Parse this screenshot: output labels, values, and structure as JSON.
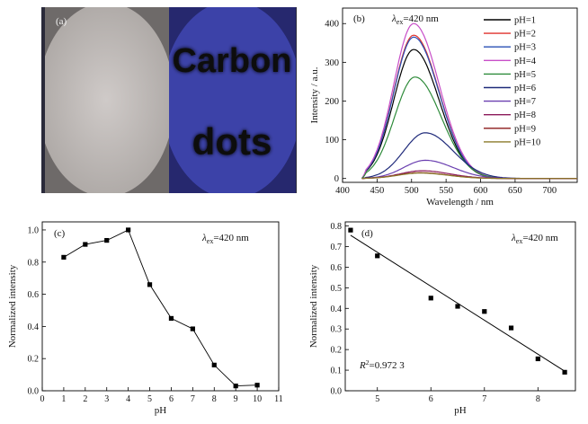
{
  "panels": {
    "a": {
      "label": "(a)",
      "photo_text_line1": "Carbon",
      "photo_text_line2": "dots",
      "colors": {
        "left_bg": "#b9b4b1",
        "right_bg": "#3c42a8",
        "glow": "#3fd8d0"
      }
    }
  },
  "chart_data": [
    {
      "panel": "b",
      "type": "line",
      "panel_label": "(b)",
      "annotation_main": "λ",
      "annotation_sub": "ex",
      "annotation_tail": "=420 nm",
      "xlabel": "Wavelength / nm",
      "ylabel": "Intensity / a.u.",
      "xlim": [
        400,
        740
      ],
      "ylim": [
        -10,
        440
      ],
      "xticks": [
        400,
        450,
        500,
        550,
        600,
        650,
        700
      ],
      "yticks": [
        0,
        100,
        200,
        300,
        400
      ],
      "legend_position": "top-right",
      "series": [
        {
          "name": "pH=1",
          "color": "#000000",
          "peak": 333,
          "center": 503,
          "width": 37
        },
        {
          "name": "pH=2",
          "color": "#e0312b",
          "peak": 370,
          "center": 503,
          "width": 37
        },
        {
          "name": "pH=3",
          "color": "#2a4fb5",
          "peak": 365,
          "center": 503,
          "width": 37
        },
        {
          "name": "pH=4",
          "color": "#c84fc8",
          "peak": 400,
          "center": 503,
          "width": 37
        },
        {
          "name": "pH=5",
          "color": "#2e8b3a",
          "peak": 262,
          "center": 505,
          "width": 38
        },
        {
          "name": "pH=6",
          "color": "#1f2a7a",
          "peak": 118,
          "center": 520,
          "width": 40
        },
        {
          "name": "pH=7",
          "color": "#6a3fb0",
          "peak": 47,
          "center": 520,
          "width": 40
        },
        {
          "name": "pH=8",
          "color": "#8b1a5a",
          "peak": 20,
          "center": 515,
          "width": 40
        },
        {
          "name": "pH=9",
          "color": "#8b1a1a",
          "peak": 15,
          "center": 512,
          "width": 40
        },
        {
          "name": "pH=10",
          "color": "#8b7a2a",
          "peak": 14,
          "center": 512,
          "width": 40
        }
      ]
    },
    {
      "panel": "c",
      "type": "line",
      "panel_label": "(c)",
      "annotation_main": "λ",
      "annotation_sub": "ex",
      "annotation_tail": "=420 nm",
      "xlabel": "pH",
      "ylabel": "Normalized intensity",
      "xlim": [
        0,
        11
      ],
      "ylim": [
        0,
        1.05
      ],
      "xticks": [
        0,
        1,
        2,
        3,
        4,
        5,
        6,
        7,
        8,
        9,
        10,
        11
      ],
      "yticks": [
        0.0,
        0.2,
        0.4,
        0.6,
        0.8,
        1.0
      ],
      "grid": false,
      "points": [
        {
          "x": 1,
          "y": 0.83
        },
        {
          "x": 2,
          "y": 0.91
        },
        {
          "x": 3,
          "y": 0.935
        },
        {
          "x": 4,
          "y": 1.0
        },
        {
          "x": 5,
          "y": 0.66
        },
        {
          "x": 6,
          "y": 0.45
        },
        {
          "x": 7,
          "y": 0.385
        },
        {
          "x": 8,
          "y": 0.16
        },
        {
          "x": 9,
          "y": 0.03
        },
        {
          "x": 10,
          "y": 0.035
        }
      ]
    },
    {
      "panel": "d",
      "type": "scatter",
      "panel_label": "(d)",
      "annotation_main": "λ",
      "annotation_sub": "ex",
      "annotation_tail": "=420 nm",
      "fit_label_main": "R",
      "fit_label_sup": "2",
      "fit_label_tail": "=0.972 3",
      "xlabel": "pH",
      "ylabel": "Normalized intensity",
      "xlim": [
        4.4,
        8.7
      ],
      "ylim": [
        0.0,
        0.82
      ],
      "xticks": [
        5,
        6,
        7,
        8
      ],
      "yticks": [
        0.0,
        0.1,
        0.2,
        0.3,
        0.4,
        0.5,
        0.6,
        0.7,
        0.8
      ],
      "grid": false,
      "points": [
        {
          "x": 4.5,
          "y": 0.78
        },
        {
          "x": 5,
          "y": 0.655
        },
        {
          "x": 6,
          "y": 0.45
        },
        {
          "x": 6.5,
          "y": 0.41
        },
        {
          "x": 7,
          "y": 0.385
        },
        {
          "x": 7.5,
          "y": 0.305
        },
        {
          "x": 8,
          "y": 0.155
        },
        {
          "x": 8.5,
          "y": 0.09
        }
      ],
      "fit_line": {
        "x1": 4.5,
        "y1": 0.755,
        "x2": 8.5,
        "y2": 0.095
      }
    }
  ]
}
